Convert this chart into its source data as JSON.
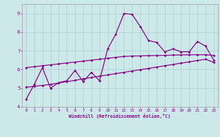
{
  "x": [
    0,
    1,
    2,
    3,
    4,
    5,
    6,
    7,
    8,
    9,
    10,
    11,
    12,
    13,
    14,
    15,
    16,
    17,
    18,
    19,
    20,
    21,
    22,
    23
  ],
  "line1": [
    4.4,
    5.2,
    6.1,
    5.0,
    5.3,
    5.4,
    5.95,
    5.35,
    5.85,
    5.4,
    7.1,
    7.9,
    9.0,
    8.95,
    8.3,
    7.55,
    7.45,
    6.95,
    7.1,
    6.95,
    6.95,
    7.5,
    7.25,
    6.5
  ],
  "line2_x": [
    0,
    1,
    2,
    3,
    4,
    5,
    6,
    7,
    8,
    9,
    10,
    11,
    12,
    13,
    14,
    15,
    16,
    17,
    18,
    19,
    20,
    21,
    22,
    23
  ],
  "line2_y": [
    5.05,
    5.1,
    5.15,
    5.2,
    5.28,
    5.35,
    5.42,
    5.5,
    5.57,
    5.64,
    5.71,
    5.78,
    5.85,
    5.92,
    5.99,
    6.06,
    6.13,
    6.2,
    6.27,
    6.34,
    6.41,
    6.48,
    6.55,
    6.38
  ],
  "line3_x": [
    0,
    1,
    2,
    3,
    4,
    5,
    6,
    7,
    8,
    9,
    10,
    11,
    12,
    13,
    14,
    15,
    16,
    17,
    18,
    19,
    20,
    21,
    22,
    23
  ],
  "line3_y": [
    6.1,
    6.15,
    6.2,
    6.25,
    6.3,
    6.35,
    6.4,
    6.45,
    6.5,
    6.55,
    6.6,
    6.65,
    6.7,
    6.72,
    6.73,
    6.74,
    6.75,
    6.76,
    6.77,
    6.78,
    6.79,
    6.79,
    6.79,
    6.75
  ],
  "background_color": "#cce8e8",
  "grid_color": "#aacece",
  "line_color": "#880088",
  "xlabel": "Windchill (Refroidissement éolien,°C)",
  "ylim": [
    4,
    9.5
  ],
  "xlim": [
    -0.5,
    23.5
  ],
  "yticks": [
    4,
    5,
    6,
    7,
    8,
    9
  ],
  "xticks": [
    0,
    1,
    2,
    3,
    4,
    5,
    6,
    7,
    8,
    9,
    10,
    11,
    12,
    13,
    14,
    15,
    16,
    17,
    18,
    19,
    20,
    21,
    22,
    23
  ]
}
